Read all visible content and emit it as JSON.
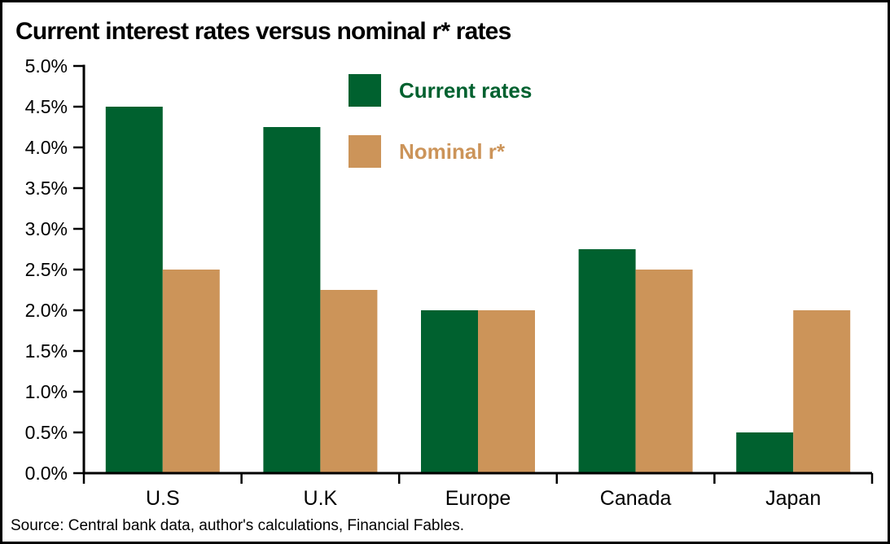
{
  "title": "Current interest rates versus nominal r* rates",
  "source_note": "Source: Central bank data, author's calculations, Financial Fables.",
  "colors": {
    "current_rates": "#00612F",
    "nominal_r_star": "#CC9459",
    "axis": "#000000",
    "background": "#FFFFFF",
    "border": "#000000"
  },
  "legend": {
    "items": [
      {
        "label": "Current rates",
        "color": "#00612F"
      },
      {
        "label": "Nominal r*",
        "color": "#CC9459"
      }
    ]
  },
  "chart_data": {
    "type": "bar",
    "title": "Current interest rates versus nominal r* rates",
    "categories": [
      "U.S",
      "U.K",
      "Europe",
      "Canada",
      "Japan"
    ],
    "series": [
      {
        "name": "Current rates",
        "color": "#00612F",
        "values": [
          4.5,
          4.25,
          2.0,
          2.75,
          0.5
        ]
      },
      {
        "name": "Nominal r*",
        "color": "#CC9459",
        "values": [
          2.5,
          2.25,
          2.0,
          2.5,
          2.0
        ]
      }
    ],
    "xlabel": "",
    "ylabel": "",
    "ylim": [
      0,
      5
    ],
    "ytick_step": 0.5,
    "ytick_labels": [
      "0.0%",
      "0.5%",
      "1.0%",
      "1.5%",
      "2.0%",
      "2.5%",
      "3.0%",
      "3.5%",
      "4.0%",
      "4.5%",
      "5.0%"
    ],
    "grid": false,
    "legend_position": "inside-top-center",
    "source": "Source: Central bank data, author's calculations, Financial Fables."
  }
}
